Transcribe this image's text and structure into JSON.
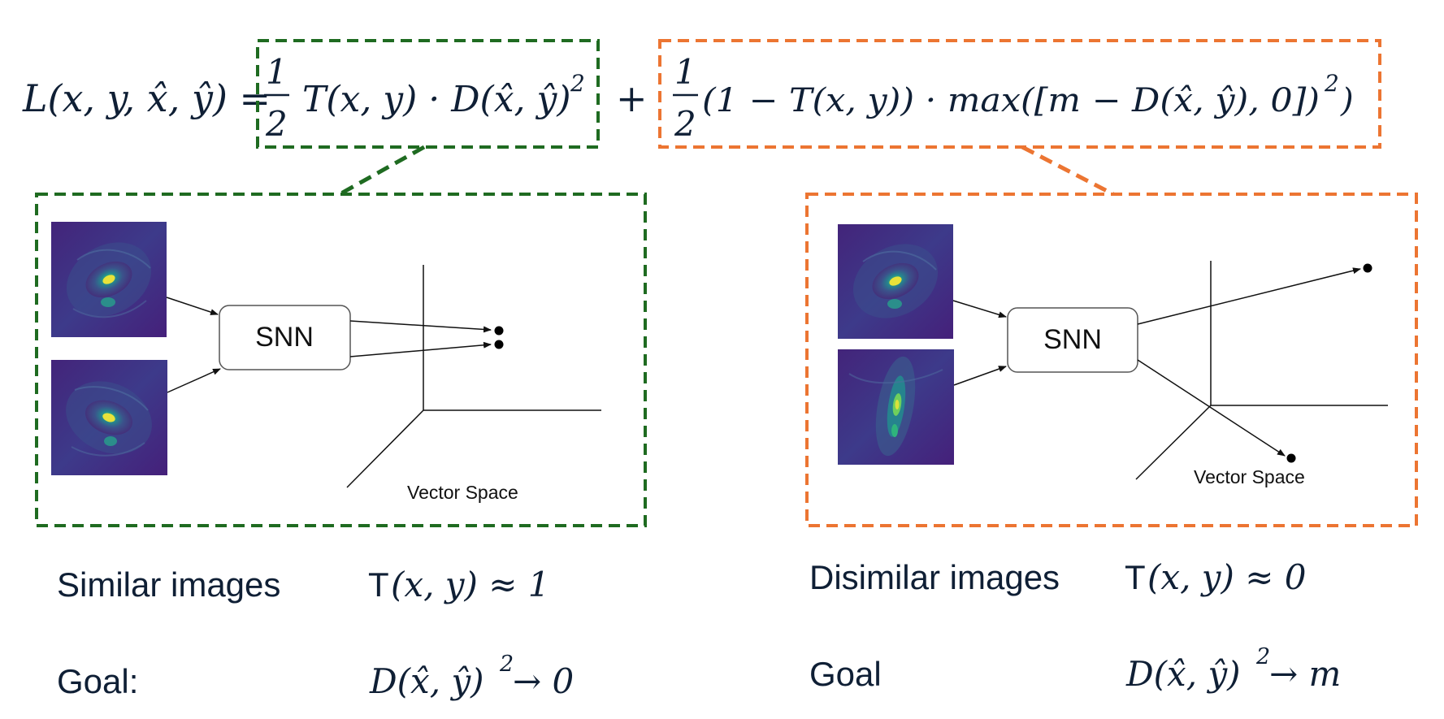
{
  "equation": {
    "lhs": "L(x, y, x̂, ŷ) =",
    "term1": {
      "fraction_num": "1",
      "fraction_den": "2",
      "body": "T(x, y) · D(x̂, ŷ)",
      "sup": "2"
    },
    "plus": "+",
    "term2": {
      "fraction_num": "1",
      "fraction_den": "2",
      "body": "(1 − T(x, y)) · max([m − D(x̂, ŷ), 0])",
      "sup": "2",
      "tail": ")"
    }
  },
  "colors": {
    "similar_box": "#1f6b21",
    "dissimilar_box": "#ec7532",
    "text": "#0f1f35"
  },
  "left_panel": {
    "network_label": "SNN",
    "space_label": "Vector Space",
    "caption": "Similar images",
    "condition_prefix": "T",
    "condition_math": "(x, y) ≈ 1",
    "goal_label": "Goal:",
    "goal_math": "D(x̂, ŷ)",
    "goal_sup": "2",
    "goal_tail": " → 0"
  },
  "right_panel": {
    "network_label": "SNN",
    "space_label": "Vector Space",
    "caption": "Disimilar images",
    "condition_prefix": "T",
    "condition_math": "(x, y) ≈ 0",
    "goal_label": "Goal",
    "goal_math": "D(x̂, ŷ)",
    "goal_sup": "2",
    "goal_tail": " → m"
  }
}
